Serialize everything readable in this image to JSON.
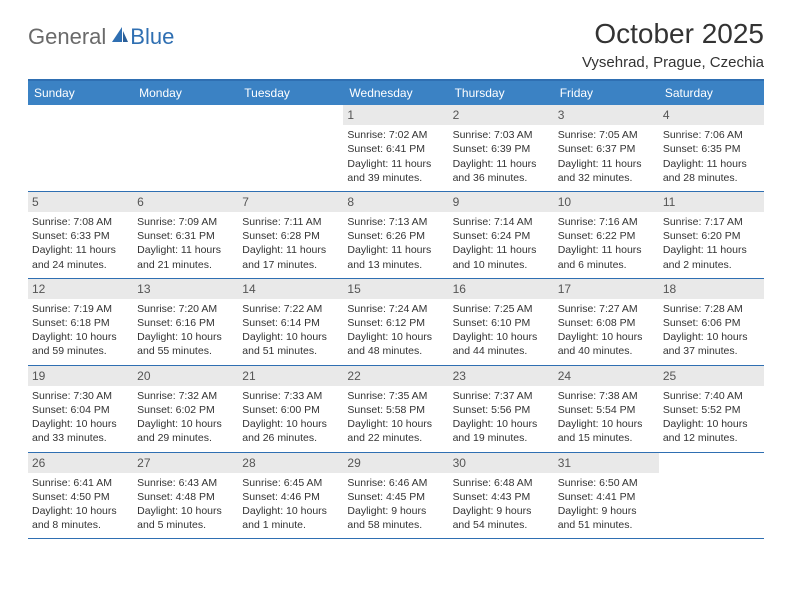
{
  "logo": {
    "text1": "General",
    "text2": "Blue"
  },
  "title": "October 2025",
  "location": "Vysehrad, Prague, Czechia",
  "colors": {
    "header_bg": "#3b82c4",
    "header_text": "#ffffff",
    "rule": "#2f6fb2",
    "daynum_bg": "#e9e9e9",
    "body_text": "#333333",
    "logo_gray": "#6a6a6a",
    "logo_blue": "#2f6fb2"
  },
  "fonts": {
    "title_size_pt": 21,
    "location_size_pt": 11,
    "dayheader_size_pt": 9,
    "body_size_pt": 8
  },
  "day_headers": [
    "Sunday",
    "Monday",
    "Tuesday",
    "Wednesday",
    "Thursday",
    "Friday",
    "Saturday"
  ],
  "weeks": [
    [
      {
        "n": "",
        "sunrise": "",
        "sunset": "",
        "daylight": ""
      },
      {
        "n": "",
        "sunrise": "",
        "sunset": "",
        "daylight": ""
      },
      {
        "n": "",
        "sunrise": "",
        "sunset": "",
        "daylight": ""
      },
      {
        "n": "1",
        "sunrise": "Sunrise: 7:02 AM",
        "sunset": "Sunset: 6:41 PM",
        "daylight": "Daylight: 11 hours and 39 minutes."
      },
      {
        "n": "2",
        "sunrise": "Sunrise: 7:03 AM",
        "sunset": "Sunset: 6:39 PM",
        "daylight": "Daylight: 11 hours and 36 minutes."
      },
      {
        "n": "3",
        "sunrise": "Sunrise: 7:05 AM",
        "sunset": "Sunset: 6:37 PM",
        "daylight": "Daylight: 11 hours and 32 minutes."
      },
      {
        "n": "4",
        "sunrise": "Sunrise: 7:06 AM",
        "sunset": "Sunset: 6:35 PM",
        "daylight": "Daylight: 11 hours and 28 minutes."
      }
    ],
    [
      {
        "n": "5",
        "sunrise": "Sunrise: 7:08 AM",
        "sunset": "Sunset: 6:33 PM",
        "daylight": "Daylight: 11 hours and 24 minutes."
      },
      {
        "n": "6",
        "sunrise": "Sunrise: 7:09 AM",
        "sunset": "Sunset: 6:31 PM",
        "daylight": "Daylight: 11 hours and 21 minutes."
      },
      {
        "n": "7",
        "sunrise": "Sunrise: 7:11 AM",
        "sunset": "Sunset: 6:28 PM",
        "daylight": "Daylight: 11 hours and 17 minutes."
      },
      {
        "n": "8",
        "sunrise": "Sunrise: 7:13 AM",
        "sunset": "Sunset: 6:26 PM",
        "daylight": "Daylight: 11 hours and 13 minutes."
      },
      {
        "n": "9",
        "sunrise": "Sunrise: 7:14 AM",
        "sunset": "Sunset: 6:24 PM",
        "daylight": "Daylight: 11 hours and 10 minutes."
      },
      {
        "n": "10",
        "sunrise": "Sunrise: 7:16 AM",
        "sunset": "Sunset: 6:22 PM",
        "daylight": "Daylight: 11 hours and 6 minutes."
      },
      {
        "n": "11",
        "sunrise": "Sunrise: 7:17 AM",
        "sunset": "Sunset: 6:20 PM",
        "daylight": "Daylight: 11 hours and 2 minutes."
      }
    ],
    [
      {
        "n": "12",
        "sunrise": "Sunrise: 7:19 AM",
        "sunset": "Sunset: 6:18 PM",
        "daylight": "Daylight: 10 hours and 59 minutes."
      },
      {
        "n": "13",
        "sunrise": "Sunrise: 7:20 AM",
        "sunset": "Sunset: 6:16 PM",
        "daylight": "Daylight: 10 hours and 55 minutes."
      },
      {
        "n": "14",
        "sunrise": "Sunrise: 7:22 AM",
        "sunset": "Sunset: 6:14 PM",
        "daylight": "Daylight: 10 hours and 51 minutes."
      },
      {
        "n": "15",
        "sunrise": "Sunrise: 7:24 AM",
        "sunset": "Sunset: 6:12 PM",
        "daylight": "Daylight: 10 hours and 48 minutes."
      },
      {
        "n": "16",
        "sunrise": "Sunrise: 7:25 AM",
        "sunset": "Sunset: 6:10 PM",
        "daylight": "Daylight: 10 hours and 44 minutes."
      },
      {
        "n": "17",
        "sunrise": "Sunrise: 7:27 AM",
        "sunset": "Sunset: 6:08 PM",
        "daylight": "Daylight: 10 hours and 40 minutes."
      },
      {
        "n": "18",
        "sunrise": "Sunrise: 7:28 AM",
        "sunset": "Sunset: 6:06 PM",
        "daylight": "Daylight: 10 hours and 37 minutes."
      }
    ],
    [
      {
        "n": "19",
        "sunrise": "Sunrise: 7:30 AM",
        "sunset": "Sunset: 6:04 PM",
        "daylight": "Daylight: 10 hours and 33 minutes."
      },
      {
        "n": "20",
        "sunrise": "Sunrise: 7:32 AM",
        "sunset": "Sunset: 6:02 PM",
        "daylight": "Daylight: 10 hours and 29 minutes."
      },
      {
        "n": "21",
        "sunrise": "Sunrise: 7:33 AM",
        "sunset": "Sunset: 6:00 PM",
        "daylight": "Daylight: 10 hours and 26 minutes."
      },
      {
        "n": "22",
        "sunrise": "Sunrise: 7:35 AM",
        "sunset": "Sunset: 5:58 PM",
        "daylight": "Daylight: 10 hours and 22 minutes."
      },
      {
        "n": "23",
        "sunrise": "Sunrise: 7:37 AM",
        "sunset": "Sunset: 5:56 PM",
        "daylight": "Daylight: 10 hours and 19 minutes."
      },
      {
        "n": "24",
        "sunrise": "Sunrise: 7:38 AM",
        "sunset": "Sunset: 5:54 PM",
        "daylight": "Daylight: 10 hours and 15 minutes."
      },
      {
        "n": "25",
        "sunrise": "Sunrise: 7:40 AM",
        "sunset": "Sunset: 5:52 PM",
        "daylight": "Daylight: 10 hours and 12 minutes."
      }
    ],
    [
      {
        "n": "26",
        "sunrise": "Sunrise: 6:41 AM",
        "sunset": "Sunset: 4:50 PM",
        "daylight": "Daylight: 10 hours and 8 minutes."
      },
      {
        "n": "27",
        "sunrise": "Sunrise: 6:43 AM",
        "sunset": "Sunset: 4:48 PM",
        "daylight": "Daylight: 10 hours and 5 minutes."
      },
      {
        "n": "28",
        "sunrise": "Sunrise: 6:45 AM",
        "sunset": "Sunset: 4:46 PM",
        "daylight": "Daylight: 10 hours and 1 minute."
      },
      {
        "n": "29",
        "sunrise": "Sunrise: 6:46 AM",
        "sunset": "Sunset: 4:45 PM",
        "daylight": "Daylight: 9 hours and 58 minutes."
      },
      {
        "n": "30",
        "sunrise": "Sunrise: 6:48 AM",
        "sunset": "Sunset: 4:43 PM",
        "daylight": "Daylight: 9 hours and 54 minutes."
      },
      {
        "n": "31",
        "sunrise": "Sunrise: 6:50 AM",
        "sunset": "Sunset: 4:41 PM",
        "daylight": "Daylight: 9 hours and 51 minutes."
      },
      {
        "n": "",
        "sunrise": "",
        "sunset": "",
        "daylight": ""
      }
    ]
  ]
}
